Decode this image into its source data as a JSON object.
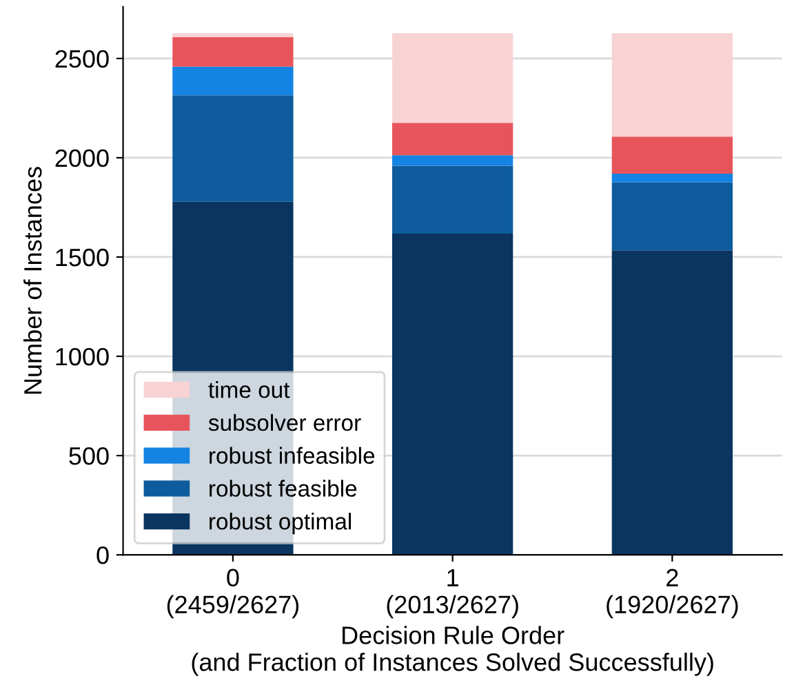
{
  "chart_data": {
    "type": "bar",
    "stacked": true,
    "xlabel": "Decision Rule Order\n(and Fraction of Instances Solved Successfully)",
    "ylabel": "Number of Instances",
    "categories": [
      "0\n(2459/2627)",
      "1\n(2013/2627)",
      "2\n(1920/2627)"
    ],
    "series": [
      {
        "name": "robust optimal",
        "color": "#0a3560",
        "values": [
          1778,
          1618,
          1534
        ]
      },
      {
        "name": "robust feasible",
        "color": "#0e5c9e",
        "values": [
          537,
          342,
          342
        ]
      },
      {
        "name": "robust infeasible",
        "color": "#1483e2",
        "values": [
          144,
          53,
          44
        ]
      },
      {
        "name": "subsolver error",
        "color": "#e8545b",
        "values": [
          149,
          163,
          186
        ]
      },
      {
        "name": "time out",
        "color": "#f8d3d4",
        "values": [
          19,
          451,
          521
        ]
      }
    ],
    "ylim": [
      0,
      2760
    ],
    "yticks": [
      0,
      500,
      1000,
      1500,
      2000,
      2500
    ],
    "grid": "y",
    "legend": "bottom left"
  }
}
